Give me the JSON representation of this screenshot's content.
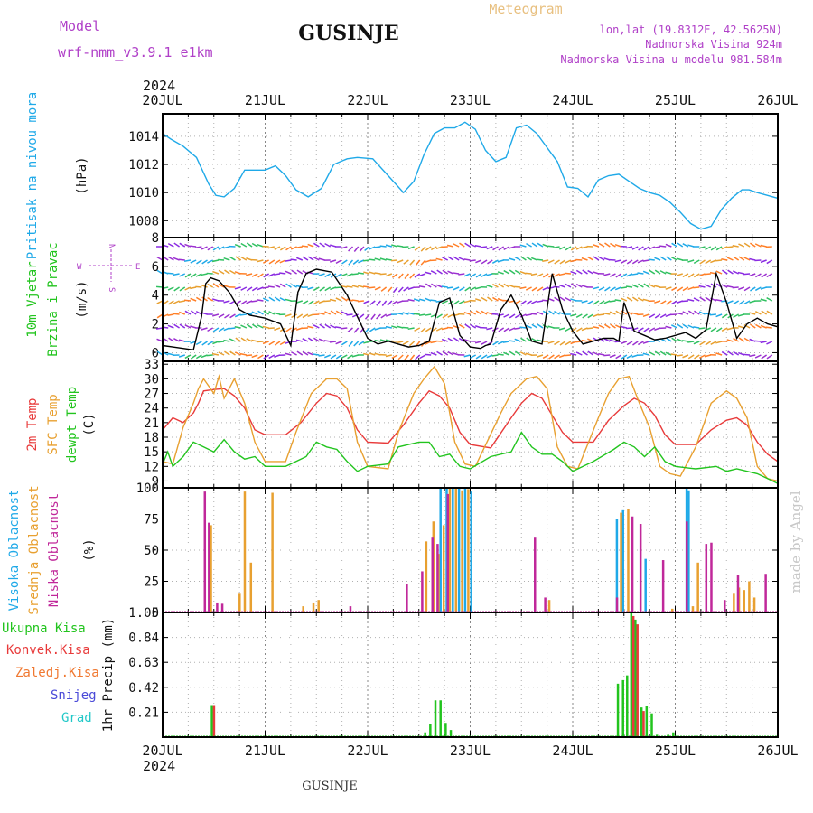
{
  "header": {
    "model_label": "Model",
    "model_name": "wrf-nmm_v3.9.1 e1km",
    "station": "GUSINJE",
    "meteogram_label": "Meteogram",
    "lonlat": "lon,lat (19.8312E, 42.5625N)",
    "elevation": "Nadmorska Visina 924m",
    "model_elevation": "Nadmorska Visina u modelu 981.584m",
    "credit": "made by Angel",
    "footer_station": "GUSINJE"
  },
  "time_axis": {
    "year": "2024",
    "labels": [
      "20JUL",
      "21JUL",
      "22JUL",
      "23JUL",
      "24JUL",
      "25JUL",
      "26JUL"
    ]
  },
  "colors": {
    "pressure": "#1fa9e8",
    "temp2m": "#e83a3a",
    "sfctemp": "#e8a030",
    "dewpt": "#22c41e",
    "high_cloud": "#1fa9e8",
    "mid_cloud": "#e8a030",
    "low_cloud": "#c0289a",
    "total_precip": "#22c41e",
    "conv_precip": "#e83a3a",
    "frz_precip": "#f07830",
    "snow": "#4a4ad8",
    "hail": "#20c8c8",
    "wind_label": "#22c41e",
    "wind_rose": "#b040c8",
    "credit": "#c8c8c8"
  },
  "chart_data": [
    {
      "type": "line",
      "title": "",
      "ylabel": [
        "Pritisak na nivou mora",
        "(hPa)"
      ],
      "yticks": [
        1008,
        1010,
        1012,
        1014
      ],
      "ylim": [
        1006.8,
        1015.6
      ],
      "grid": true,
      "series": [
        {
          "color_key": "pressure",
          "x": [
            0,
            0.08,
            0.2,
            0.33,
            0.45,
            0.52,
            0.6,
            0.7,
            0.8,
            0.9,
            1.0,
            1.1,
            1.2,
            1.3,
            1.42,
            1.55,
            1.67,
            1.8,
            1.9,
            2.05,
            2.2,
            2.35,
            2.45,
            2.55,
            2.65,
            2.75,
            2.85,
            2.95,
            3.05,
            3.15,
            3.25,
            3.35,
            3.45,
            3.55,
            3.65,
            3.75,
            3.85,
            3.95,
            4.05,
            4.15,
            4.25,
            4.35,
            4.45,
            4.55,
            4.65,
            4.75,
            4.85,
            4.95,
            5.05,
            5.15,
            5.25,
            5.35,
            5.45,
            5.55,
            5.65,
            5.72,
            5.8,
            5.9,
            6.0
          ],
          "y": [
            1014.2,
            1013.8,
            1013.3,
            1012.5,
            1010.6,
            1009.8,
            1009.7,
            1010.3,
            1011.6,
            1011.6,
            1011.6,
            1011.9,
            1011.2,
            1010.2,
            1009.7,
            1010.3,
            1012.0,
            1012.4,
            1012.5,
            1012.4,
            1011.2,
            1010.0,
            1010.8,
            1012.7,
            1014.2,
            1014.6,
            1014.6,
            1015.0,
            1014.5,
            1013.0,
            1012.2,
            1012.5,
            1014.6,
            1014.8,
            1014.2,
            1013.2,
            1012.2,
            1010.4,
            1010.3,
            1009.7,
            1010.9,
            1011.2,
            1011.3,
            1010.8,
            1010.3,
            1010.0,
            1009.8,
            1009.3,
            1008.6,
            1007.8,
            1007.4,
            1007.6,
            1008.8,
            1009.6,
            1010.2,
            1010.2,
            1010.0,
            1009.8,
            1009.6
          ]
        }
      ]
    },
    {
      "type": "line",
      "title": "",
      "ylabel": [
        "10m Vjetar",
        "Brzina i Pravac",
        "(m/s)"
      ],
      "yticks": [
        0,
        2,
        4,
        6,
        8
      ],
      "ylim": [
        -0.6,
        8
      ],
      "wind_rose": [
        "N",
        "S",
        "W",
        "E"
      ],
      "grid": true,
      "series": [
        {
          "color_key": "black",
          "x": [
            0,
            0.1,
            0.2,
            0.3,
            0.38,
            0.42,
            0.47,
            0.55,
            0.65,
            0.75,
            0.85,
            1.0,
            1.15,
            1.25,
            1.32,
            1.4,
            1.5,
            1.65,
            1.8,
            1.9,
            2.0,
            2.1,
            2.2,
            2.3,
            2.4,
            2.5,
            2.6,
            2.7,
            2.8,
            2.9,
            3.0,
            3.1,
            3.15,
            3.2,
            3.3,
            3.4,
            3.5,
            3.6,
            3.7,
            3.8,
            3.9,
            4.0,
            4.1,
            4.2,
            4.3,
            4.4,
            4.45,
            4.5,
            4.6,
            4.7,
            4.8,
            4.9,
            5.0,
            5.1,
            5.2,
            5.3,
            5.4,
            5.5,
            5.6,
            5.7,
            5.8,
            5.9,
            6.0
          ],
          "y": [
            0.5,
            0.4,
            0.3,
            0.2,
            2.5,
            4.8,
            5.2,
            5.0,
            4.2,
            3.0,
            2.6,
            2.4,
            2.0,
            0.5,
            4.2,
            5.5,
            5.8,
            5.6,
            4.0,
            2.5,
            1.0,
            0.6,
            0.8,
            0.6,
            0.4,
            0.5,
            0.8,
            3.5,
            3.8,
            1.2,
            0.4,
            0.3,
            0.5,
            0.6,
            3.0,
            4.0,
            2.6,
            0.8,
            0.6,
            5.5,
            3.0,
            1.5,
            0.6,
            0.8,
            1.0,
            1.0,
            0.8,
            3.5,
            1.5,
            1.2,
            0.9,
            1.0,
            1.2,
            1.4,
            1.0,
            1.6,
            5.5,
            3.5,
            1.0,
            2.0,
            2.4,
            2.0,
            1.8
          ]
        }
      ]
    },
    {
      "type": "line",
      "title": "",
      "ylabel": [
        "2m Temp",
        "SFC Temp",
        "dewpt Temp",
        "(C)"
      ],
      "yticks": [
        9,
        12,
        15,
        18,
        21,
        24,
        27,
        30,
        33
      ],
      "ylim": [
        7.6,
        33.6
      ],
      "grid": true,
      "series": [
        {
          "name": "2m Temp",
          "color_key": "temp2m",
          "x": [
            0,
            0.1,
            0.2,
            0.3,
            0.35,
            0.4,
            0.5,
            0.6,
            0.7,
            0.8,
            0.9,
            1.0,
            1.2,
            1.35,
            1.5,
            1.6,
            1.7,
            1.8,
            1.9,
            2.0,
            2.2,
            2.35,
            2.5,
            2.6,
            2.7,
            2.8,
            2.9,
            3.0,
            3.2,
            3.4,
            3.5,
            3.6,
            3.7,
            3.8,
            3.9,
            4.0,
            4.2,
            4.35,
            4.5,
            4.6,
            4.7,
            4.8,
            4.9,
            5.0,
            5.2,
            5.35,
            5.5,
            5.6,
            5.7,
            5.8,
            5.9,
            6.0
          ],
          "y": [
            19.5,
            22.0,
            21.0,
            23.0,
            25.0,
            27.5,
            27.8,
            28.0,
            26.5,
            24.0,
            19.5,
            18.5,
            18.5,
            21.0,
            25.0,
            27.0,
            26.5,
            24.0,
            19.5,
            17.0,
            16.8,
            20.5,
            25.0,
            27.5,
            26.5,
            24.0,
            19.0,
            16.5,
            15.8,
            22.0,
            25.0,
            27.0,
            26.0,
            22.5,
            19.0,
            17.0,
            17.0,
            21.5,
            24.5,
            26.0,
            25.0,
            22.5,
            18.5,
            16.5,
            16.5,
            19.5,
            21.5,
            22.0,
            20.5,
            17.0,
            14.5,
            13.0
          ]
        },
        {
          "name": "SFC Temp",
          "color_key": "sfctemp",
          "x": [
            0,
            0.1,
            0.2,
            0.3,
            0.35,
            0.4,
            0.5,
            0.55,
            0.6,
            0.7,
            0.8,
            0.9,
            1.0,
            1.2,
            1.3,
            1.45,
            1.6,
            1.7,
            1.8,
            1.9,
            2.0,
            2.2,
            2.3,
            2.45,
            2.55,
            2.65,
            2.75,
            2.85,
            2.95,
            3.05,
            3.3,
            3.4,
            3.55,
            3.65,
            3.75,
            3.85,
            3.95,
            4.05,
            4.25,
            4.35,
            4.45,
            4.55,
            4.65,
            4.75,
            4.85,
            4.95,
            5.05,
            5.2,
            5.35,
            5.5,
            5.6,
            5.7,
            5.8,
            5.9,
            6.0
          ],
          "y": [
            13.0,
            12.5,
            20.0,
            25.0,
            28.0,
            30.0,
            27.0,
            30.5,
            26.0,
            30.0,
            25.0,
            17.0,
            13.0,
            13.0,
            19.0,
            27.0,
            30.0,
            30.0,
            28.0,
            17.0,
            12.0,
            11.5,
            19.0,
            27.0,
            30.0,
            32.5,
            29.0,
            17.0,
            12.5,
            12.0,
            23.0,
            27.0,
            30.0,
            30.5,
            28.0,
            16.0,
            12.0,
            11.5,
            22.0,
            27.0,
            30.0,
            30.5,
            25.0,
            20.0,
            12.0,
            10.5,
            10.0,
            16.0,
            25.0,
            27.5,
            26.0,
            22.0,
            12.0,
            9.5,
            9.0
          ]
        },
        {
          "name": "dewpt Temp",
          "color_key": "dewpt",
          "x": [
            0,
            0.05,
            0.1,
            0.2,
            0.3,
            0.4,
            0.5,
            0.6,
            0.7,
            0.8,
            0.9,
            1.0,
            1.2,
            1.4,
            1.5,
            1.6,
            1.7,
            1.8,
            1.9,
            2.0,
            2.2,
            2.3,
            2.4,
            2.5,
            2.6,
            2.7,
            2.8,
            2.9,
            3.0,
            3.2,
            3.4,
            3.5,
            3.6,
            3.7,
            3.8,
            3.9,
            4.0,
            4.2,
            4.4,
            4.5,
            4.6,
            4.7,
            4.8,
            4.9,
            5.0,
            5.2,
            5.4,
            5.5,
            5.6,
            5.7,
            5.8,
            5.9,
            6.0
          ],
          "y": [
            12.5,
            15.0,
            12.0,
            14.0,
            17.0,
            16.0,
            15.0,
            17.5,
            15.0,
            13.5,
            14.0,
            12.0,
            12.0,
            14.0,
            17.0,
            16.0,
            15.5,
            13.0,
            11.0,
            12.0,
            12.5,
            16.0,
            16.5,
            17.0,
            17.0,
            14.0,
            14.5,
            12.0,
            11.5,
            14.0,
            15.0,
            19.0,
            16.0,
            14.5,
            14.5,
            13.0,
            11.0,
            13.0,
            15.5,
            17.0,
            16.0,
            14.0,
            16.0,
            13.0,
            12.0,
            11.5,
            12.0,
            11.0,
            11.5,
            11.0,
            10.5,
            9.5,
            8.5
          ]
        }
      ]
    },
    {
      "type": "bar",
      "title": "",
      "ylabel": [
        "Visoka Oblacnost",
        "Srednja Oblacnost",
        "Niska Oblacnost",
        "(%)"
      ],
      "yticks": [
        0,
        25,
        50,
        75,
        100
      ],
      "ylim": [
        0,
        100
      ],
      "grid": true,
      "series": [
        {
          "name": "Visoka Oblacnost",
          "color_key": "high_cloud",
          "x": [
            2.7,
            2.76,
            2.82,
            2.88,
            2.94,
            3.0,
            4.42,
            4.48,
            4.7,
            5.1,
            5.12
          ],
          "y": [
            100,
            100,
            100,
            100,
            100,
            97,
            75,
            82,
            43,
            100,
            98
          ]
        },
        {
          "name": "Srednja Oblacnost",
          "color_key": "mid_cloud",
          "x": [
            0.45,
            0.73,
            0.78,
            0.84,
            1.05,
            1.35,
            1.45,
            1.5,
            2.55,
            2.62,
            2.67,
            2.72,
            2.78,
            2.84,
            2.9,
            2.96,
            3.75,
            4.45,
            4.52,
            4.95,
            5.15,
            5.2,
            5.55,
            5.6,
            5.65,
            5.7,
            5.75
          ],
          "y": [
            70,
            15,
            97,
            40,
            96,
            5,
            8,
            10,
            57,
            73,
            47,
            70,
            100,
            100,
            98,
            99,
            10,
            80,
            83,
            3,
            5,
            40,
            15,
            20,
            18,
            25,
            12
          ]
        },
        {
          "name": "Niska Oblacnost",
          "color_key": "low_cloud",
          "x": [
            0.38,
            0.42,
            0.5,
            0.55,
            1.8,
            2.35,
            2.5,
            2.6,
            2.65,
            2.75,
            3.6,
            3.7,
            4.4,
            4.55,
            4.63,
            4.85,
            5.08,
            5.27,
            5.32,
            5.45,
            5.58,
            5.85
          ],
          "y": [
            97,
            72,
            8,
            7,
            5,
            23,
            33,
            60,
            55,
            95,
            60,
            12,
            12,
            77,
            71,
            42,
            73,
            55,
            56,
            10,
            30,
            31
          ]
        }
      ]
    },
    {
      "type": "bar",
      "title": "",
      "ylabel": [
        "Ukupna Kisa",
        "Konvek.Kisa",
        "Zaledj.Kisa",
        "Snijeg",
        "Grad",
        "1hr Precip (mm)"
      ],
      "yticks": [
        0.21,
        0.42,
        0.63,
        0.84,
        1.05
      ],
      "ylim": [
        0,
        1.05
      ],
      "grid": true,
      "series": [
        {
          "name": "Ukupna Kisa",
          "color_key": "total_precip",
          "x": [
            0.47,
            2.55,
            2.6,
            2.65,
            2.7,
            2.75,
            2.8,
            4.43,
            4.48,
            4.52,
            4.56,
            4.6,
            4.66,
            4.71,
            4.76,
            4.81,
            4.92,
            4.97
          ],
          "y": [
            0.27,
            0.04,
            0.11,
            0.31,
            0.31,
            0.12,
            0.06,
            0.45,
            0.48,
            0.52,
            1.05,
            0.99,
            0.25,
            0.26,
            0.2,
            0.02,
            0.02,
            0.04
          ]
        },
        {
          "name": "Konvek.Kisa",
          "color_key": "conv_precip",
          "x": [
            0.48,
            4.57,
            4.61,
            4.67
          ],
          "y": [
            0.27,
            1.02,
            0.95,
            0.22
          ]
        }
      ]
    }
  ]
}
